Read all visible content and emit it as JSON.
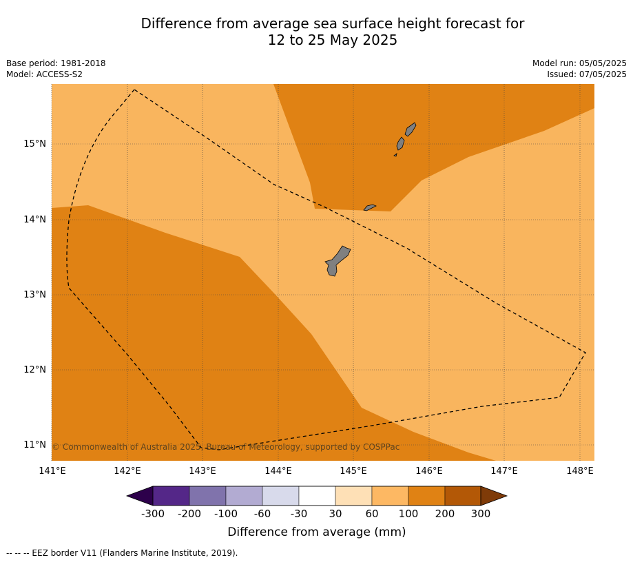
{
  "title": {
    "line1": "Difference from average sea surface height forecast for",
    "line2": "12 to 25 May 2025"
  },
  "meta": {
    "base_period": "Base period: 1981-2018",
    "model": "Model: ACCESS-S2",
    "model_run": "Model run: 05/05/2025",
    "issued": "Issued: 07/05/2025"
  },
  "map": {
    "lat_labels": [
      "15°N",
      "14°N",
      "13°N",
      "12°N",
      "11°N"
    ],
    "lon_labels": [
      "141°E",
      "142°E",
      "143°E",
      "144°E",
      "145°E",
      "146°E",
      "147°E",
      "148°E"
    ],
    "copyright": "© Commonwealth of Australia 2025, Bureau of Meteorology, supported by COSPPac",
    "colors": {
      "band_60_100": "#f9b55e",
      "band_100_200": "#e08214",
      "land": "#808080",
      "eez_line": "#000000"
    }
  },
  "colorbar": {
    "title": "Difference from average (mm)",
    "tick_labels": [
      "-300",
      "-200",
      "-100",
      "-60",
      "-30",
      "30",
      "60",
      "100",
      "200",
      "300"
    ],
    "colors": [
      "#2d004b",
      "#542788",
      "#8073ac",
      "#b2abd2",
      "#d8daeb",
      "#ffffff",
      "#fee0b6",
      "#fdb863",
      "#e08214",
      "#b35806",
      "#7f3b08"
    ]
  },
  "footer": "--  --  -- EEZ border V11 (Flanders Marine Institute, 2019)."
}
